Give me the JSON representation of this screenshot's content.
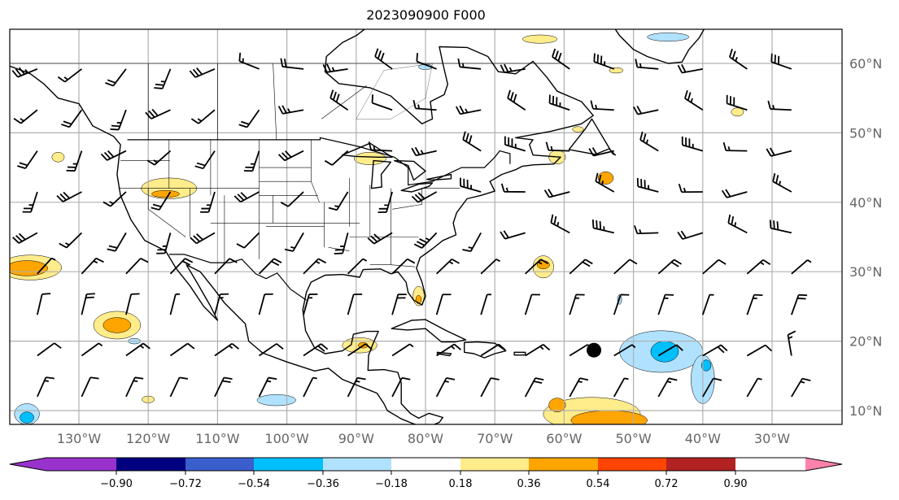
{
  "title": "2023090900 F000",
  "chart_data": {
    "type": "contour-map",
    "title": "2023090900 F000",
    "extent": {
      "lon": [
        -140,
        -20
      ],
      "lat": [
        8,
        65
      ]
    },
    "lon_ticks": [
      {
        "v": -130,
        "label": "130°W"
      },
      {
        "v": -120,
        "label": "120°W"
      },
      {
        "v": -110,
        "label": "110°W"
      },
      {
        "v": -100,
        "label": "100°W"
      },
      {
        "v": -90,
        "label": "90°W"
      },
      {
        "v": -80,
        "label": "80°W"
      },
      {
        "v": -70,
        "label": "70°W"
      },
      {
        "v": -60,
        "label": "60°W"
      },
      {
        "v": -50,
        "label": "50°W"
      },
      {
        "v": -40,
        "label": "40°W"
      },
      {
        "v": -30,
        "label": "30°W"
      }
    ],
    "lat_ticks": [
      {
        "v": 60,
        "label": "60°N"
      },
      {
        "v": 50,
        "label": "50°N"
      },
      {
        "v": 40,
        "label": "40°N"
      },
      {
        "v": 30,
        "label": "30°N"
      },
      {
        "v": 20,
        "label": "20°N"
      },
      {
        "v": 10,
        "label": "10°N"
      }
    ],
    "grid": true,
    "colorbar": {
      "levels": [
        "−0.90",
        "−0.72",
        "−0.54",
        "−0.36",
        "−0.18",
        "0.18",
        "0.36",
        "0.54",
        "0.72",
        "0.90"
      ],
      "colors": [
        "#9932cc",
        "#000080",
        "#3a5fcd",
        "#00bfff",
        "#b0e2ff",
        "#ffffff",
        "#ffec8b",
        "#ffa500",
        "#ff4500",
        "#b22222",
        "#ff82ab"
      ],
      "extend": "both"
    },
    "anomalies": [
      {
        "lon": -137,
        "lat": 30.6,
        "rx": 4.5,
        "ry": 1.8,
        "level": 6
      },
      {
        "lon": -137.5,
        "lat": 30.5,
        "rx": 3,
        "ry": 1.1,
        "level": 7
      },
      {
        "lon": -124.5,
        "lat": 22.3,
        "rx": 3.4,
        "ry": 2,
        "level": 6
      },
      {
        "lon": -124.5,
        "lat": 22.3,
        "rx": 2,
        "ry": 1.1,
        "level": 7
      },
      {
        "lon": -117,
        "lat": 42,
        "rx": 4,
        "ry": 1.5,
        "level": 6
      },
      {
        "lon": -117.5,
        "lat": 41.2,
        "rx": 2,
        "ry": 0.5,
        "level": 7
      },
      {
        "lon": -56,
        "lat": 9.5,
        "rx": 7,
        "ry": 2.4,
        "level": 6
      },
      {
        "lon": -53.5,
        "lat": 8.6,
        "rx": 5.5,
        "ry": 1.4,
        "level": 7
      },
      {
        "lon": -61,
        "lat": 10.8,
        "rx": 1.2,
        "ry": 1,
        "level": 7
      },
      {
        "lon": -46,
        "lat": 18.5,
        "rx": 6,
        "ry": 3,
        "level": 4
      },
      {
        "lon": -45.5,
        "lat": 18.5,
        "rx": 2,
        "ry": 1.5,
        "level": 3
      },
      {
        "lon": -40,
        "lat": 14.5,
        "rx": 1.7,
        "ry": 3.5,
        "level": 4
      },
      {
        "lon": -39.5,
        "lat": 16.5,
        "rx": 0.7,
        "ry": 0.8,
        "level": 3
      },
      {
        "lon": -137.5,
        "lat": 9.5,
        "rx": 1.8,
        "ry": 1.5,
        "level": 4
      },
      {
        "lon": -137.5,
        "lat": 9,
        "rx": 1,
        "ry": 0.8,
        "level": 3
      },
      {
        "lon": -63,
        "lat": 30.7,
        "rx": 1.5,
        "ry": 1.6,
        "level": 6
      },
      {
        "lon": -63,
        "lat": 31,
        "rx": 0.9,
        "ry": 0.6,
        "level": 7
      },
      {
        "lon": -89.5,
        "lat": 19.4,
        "rx": 2.5,
        "ry": 1.1,
        "level": 6
      },
      {
        "lon": -89,
        "lat": 19.4,
        "rx": 0.7,
        "ry": 0.4,
        "level": 7
      },
      {
        "lon": -81,
        "lat": 26.5,
        "rx": 0.8,
        "ry": 1.4,
        "level": 6
      },
      {
        "lon": -81,
        "lat": 26,
        "rx": 0.4,
        "ry": 0.6,
        "level": 7
      },
      {
        "lon": -88,
        "lat": 46.3,
        "rx": 2.3,
        "ry": 0.9,
        "level": 6
      },
      {
        "lon": -54,
        "lat": 43.5,
        "rx": 1.1,
        "ry": 0.9,
        "level": 7
      },
      {
        "lon": -61,
        "lat": 46.5,
        "rx": 1.2,
        "ry": 1,
        "level": 6
      },
      {
        "lon": -101.5,
        "lat": 11.5,
        "rx": 2.8,
        "ry": 0.8,
        "level": 4
      },
      {
        "lon": -45,
        "lat": 63.8,
        "rx": 3,
        "ry": 0.6,
        "level": 4
      },
      {
        "lon": -122,
        "lat": 20,
        "rx": 0.9,
        "ry": 0.4,
        "level": 4
      },
      {
        "lon": -120,
        "lat": 11.6,
        "rx": 0.9,
        "ry": 0.5,
        "level": 6
      },
      {
        "lon": -133,
        "lat": 46.5,
        "rx": 0.9,
        "ry": 0.7,
        "level": 6
      },
      {
        "lon": -35,
        "lat": 53,
        "rx": 0.9,
        "ry": 0.6,
        "level": 6
      },
      {
        "lon": -63.5,
        "lat": 63.5,
        "rx": 2.5,
        "ry": 0.6,
        "level": 6
      },
      {
        "lon": -80,
        "lat": 59.5,
        "rx": 1,
        "ry": 0.4,
        "level": 4
      },
      {
        "lon": -52,
        "lat": 26,
        "rx": 0.3,
        "ry": 0.7,
        "level": 4
      },
      {
        "lon": -58,
        "lat": 50.5,
        "rx": 0.8,
        "ry": 0.4,
        "level": 6
      },
      {
        "lon": -52.5,
        "lat": 59,
        "rx": 1,
        "ry": 0.4,
        "level": 6
      }
    ],
    "marker": {
      "lon": -55.7,
      "lat": 18.7,
      "label": "storm-center"
    }
  }
}
